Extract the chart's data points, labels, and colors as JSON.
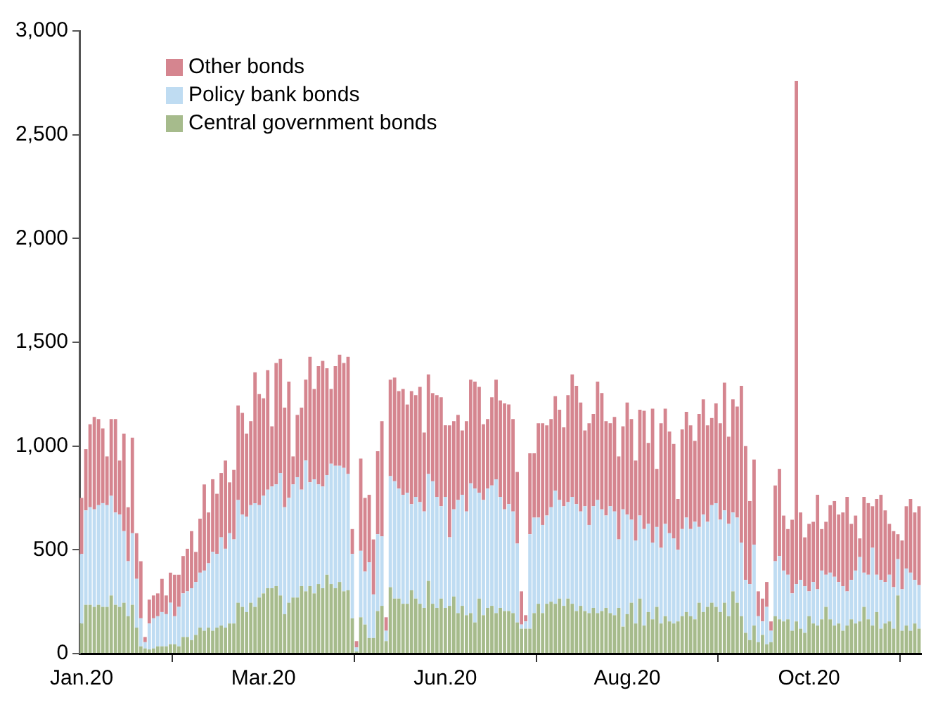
{
  "chart_data": {
    "type": "bar",
    "stacked": true,
    "legend": "top left",
    "grid": false,
    "categories": [
      "Jan.20",
      null,
      null,
      null,
      null,
      null,
      null,
      null,
      null,
      null,
      null,
      null,
      null,
      null,
      null,
      null,
      null,
      null,
      null,
      null,
      null,
      null,
      null,
      null,
      null,
      null,
      null,
      null,
      null,
      null,
      null,
      null,
      null,
      null,
      null,
      null,
      null,
      null,
      null,
      null,
      null,
      null,
      null,
      "Mar.20",
      null,
      null,
      null,
      null,
      null,
      null,
      null,
      null,
      null,
      null,
      null,
      null,
      null,
      null,
      null,
      null,
      null,
      null,
      null,
      null,
      null,
      null,
      null,
      null,
      null,
      null,
      null,
      null,
      null,
      null,
      null,
      null,
      null,
      null,
      null,
      null,
      null,
      null,
      null,
      null,
      null,
      null,
      "Jun.20",
      null,
      null,
      null,
      null,
      null,
      null,
      null,
      null,
      null,
      null,
      null,
      null,
      null,
      null,
      null,
      null,
      null,
      null,
      null,
      null,
      null,
      null,
      null,
      null,
      null,
      null,
      null,
      null,
      null,
      null,
      null,
      null,
      null,
      null,
      null,
      null,
      null,
      null,
      null,
      null,
      null,
      null,
      "Aug.20",
      null,
      null,
      null,
      null,
      null,
      null,
      null,
      null,
      null,
      null,
      null,
      null,
      null,
      null,
      null,
      null,
      null,
      null,
      null,
      null,
      null,
      null,
      null,
      null,
      null,
      null,
      null,
      null,
      null,
      null,
      null,
      null,
      null,
      null,
      null,
      null,
      null,
      null,
      null,
      null,
      null,
      null,
      "Oct.20",
      null,
      null,
      null,
      null,
      null,
      null,
      null,
      null,
      null,
      null,
      null,
      null,
      null,
      null,
      null,
      null,
      null,
      null,
      null,
      null,
      null,
      null,
      null,
      null,
      null,
      null
    ],
    "ylim": [
      0,
      3000
    ],
    "yticks": [
      0,
      {
        "value": 500,
        "label": "500"
      },
      {
        "value": 1000,
        "label": "1,000"
      },
      {
        "value": 1500,
        "label": "1,500"
      },
      {
        "value": 2000,
        "label": "2,000"
      },
      {
        "value": 2500,
        "label": "2,500"
      },
      {
        "value": 3000,
        "label": "3,000"
      }
    ],
    "series": [
      {
        "name": "Central government bonds",
        "color": "#a6bb8c",
        "values": [
          145,
          235,
          235,
          225,
          235,
          225,
          225,
          280,
          235,
          225,
          245,
          180,
          235,
          125,
          35,
          25,
          20,
          25,
          35,
          35,
          35,
          45,
          45,
          35,
          80,
          80,
          65,
          90,
          125,
          110,
          125,
          110,
          125,
          135,
          125,
          145,
          145,
          245,
          225,
          200,
          245,
          225,
          270,
          290,
          315,
          315,
          325,
          280,
          190,
          245,
          270,
          270,
          325,
          300,
          325,
          290,
          335,
          315,
          380,
          335,
          315,
          345,
          300,
          305,
          170,
          10,
          175,
          140,
          75,
          75,
          205,
          230,
          60,
          320,
          265,
          265,
          240,
          240,
          305,
          265,
          240,
          220,
          350,
          240,
          220,
          265,
          220,
          230,
          275,
          195,
          230,
          185,
          195,
          150,
          265,
          185,
          220,
          230,
          195,
          220,
          205,
          205,
          195,
          150,
          120,
          120,
          120,
          195,
          240,
          195,
          240,
          250,
          240,
          265,
          230,
          265,
          240,
          205,
          230,
          205,
          195,
          220,
          195,
          205,
          220,
          195,
          185,
          220,
          130,
          190,
          245,
          145,
          265,
          135,
          200,
          165,
          225,
          145,
          180,
          155,
          145,
          155,
          180,
          200,
          180,
          165,
          245,
          200,
          225,
          245,
          225,
          200,
          245,
          180,
          300,
          245,
          180,
          100,
          65,
          135,
          55,
          90,
          45,
          55,
          180,
          165,
          155,
          165,
          110,
          155,
          120,
          100,
          180,
          145,
          135,
          165,
          225,
          165,
          135,
          145,
          110,
          135,
          165,
          145,
          155,
          225,
          165,
          135,
          200,
          120,
          145,
          155,
          120,
          280,
          110,
          135,
          110,
          145,
          120
        ]
      },
      {
        "name": "Policy bank bonds",
        "color": "#bfdcf2",
        "values": [
          335,
          455,
          470,
          470,
          480,
          500,
          490,
          480,
          445,
          445,
          345,
          265,
          345,
          235,
          135,
          30,
          125,
          145,
          145,
          165,
          155,
          200,
          135,
          190,
          210,
          220,
          250,
          255,
          265,
          290,
          310,
          380,
          355,
          425,
          380,
          435,
          405,
          495,
          445,
          460,
          470,
          500,
          445,
          470,
          475,
          490,
          490,
          590,
          515,
          505,
          545,
          580,
          465,
          630,
          500,
          550,
          480,
          490,
          480,
          580,
          590,
          560,
          595,
          560,
          310,
          20,
          320,
          255,
          365,
          210,
          370,
          335,
          50,
          535,
          565,
          530,
          525,
          535,
          415,
          490,
          490,
          465,
          515,
          590,
          535,
          445,
          535,
          330,
          420,
          545,
          535,
          500,
          625,
          645,
          510,
          555,
          575,
          580,
          645,
          535,
          490,
          515,
          490,
          380,
          20,
          35,
          455,
          460,
          415,
          425,
          425,
          455,
          545,
          475,
          480,
          465,
          515,
          515,
          455,
          505,
          425,
          490,
          545,
          490,
          445,
          515,
          500,
          330,
          565,
          480,
          400,
          400,
          400,
          465,
          425,
          370,
          385,
          365,
          445,
          425,
          410,
          345,
          420,
          455,
          420,
          470,
          365,
          470,
          410,
          470,
          500,
          445,
          445,
          445,
          380,
          410,
          355,
          255,
          270,
          390,
          125,
          65,
          180,
          55,
          265,
          305,
          245,
          215,
          180,
          180,
          235,
          225,
          120,
          200,
          175,
          235,
          155,
          225,
          235,
          200,
          215,
          165,
          190,
          255,
          310,
          165,
          215,
          375,
          180,
          235,
          200,
          225,
          200,
          175,
          200,
          275,
          280,
          210,
          210
        ]
      },
      {
        "name": "Other bonds",
        "color": "#d5858f",
        "values": [
          270,
          295,
          400,
          445,
          415,
          360,
          235,
          370,
          450,
          260,
          470,
          260,
          460,
          220,
          275,
          25,
          115,
          110,
          110,
          160,
          90,
          145,
          200,
          155,
          180,
          205,
          275,
          145,
          260,
          415,
          245,
          350,
          290,
          310,
          425,
          245,
          335,
          455,
          490,
          400,
          405,
          630,
          535,
          470,
          575,
          290,
          585,
          550,
          480,
          560,
          135,
          300,
          395,
          390,
          605,
          435,
          570,
          605,
          515,
          360,
          480,
          535,
          505,
          565,
          120,
          30,
          445,
          355,
          325,
          265,
          400,
          555,
          65,
          465,
          500,
          470,
          510,
          425,
          545,
          490,
          555,
          380,
          480,
          425,
          490,
          525,
          345,
          540,
          425,
          410,
          310,
          435,
          500,
          515,
          510,
          365,
          335,
          425,
          480,
          465,
          510,
          480,
          445,
          345,
          160,
          30,
          390,
          310,
          455,
          490,
          435,
          425,
          455,
          435,
          380,
          515,
          590,
          570,
          525,
          365,
          490,
          445,
          570,
          560,
          455,
          400,
          455,
          400,
          400,
          540,
          485,
          385,
          510,
          570,
          390,
          645,
          280,
          600,
          555,
          490,
          455,
          245,
          480,
          510,
          500,
          390,
          545,
          555,
          465,
          420,
          480,
          465,
          615,
          420,
          545,
          535,
          755,
          645,
          400,
          410,
          120,
          110,
          120,
          45,
          365,
          420,
          265,
          220,
          355,
          2425,
          325,
          235,
          325,
          290,
          455,
          200,
          255,
          325,
          365,
          325,
          355,
          455,
          270,
          265,
          90,
          365,
          345,
          200,
          365,
          410,
          345,
          245,
          270,
          120,
          235,
          300,
          355,
          325,
          380
        ]
      }
    ]
  }
}
